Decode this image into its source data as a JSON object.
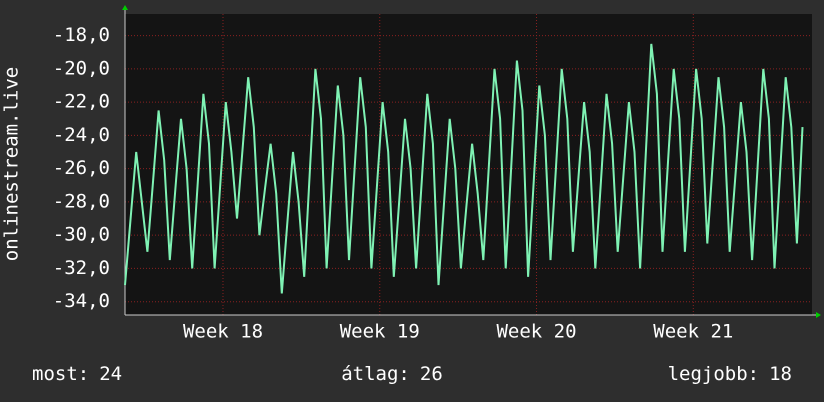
{
  "chart_data": {
    "type": "line",
    "ylabel": "onlinestream.live",
    "x": [
      0,
      1,
      2,
      3,
      4,
      5,
      6,
      7,
      8,
      9,
      10,
      11,
      12,
      13,
      14,
      15,
      16,
      17,
      18,
      19,
      20,
      21,
      22,
      23,
      24,
      25,
      26,
      27,
      28,
      29,
      30,
      31,
      32,
      33,
      34,
      35,
      36,
      37,
      38,
      39,
      40,
      41,
      42,
      43,
      44,
      45,
      46,
      47,
      48,
      49,
      50,
      51,
      52,
      53,
      54,
      55,
      56,
      57,
      58,
      59,
      60,
      61,
      62,
      63,
      64,
      65,
      66,
      67,
      68,
      69,
      70,
      71,
      72,
      73,
      74,
      75,
      76,
      77,
      78,
      79,
      80,
      81,
      82,
      83,
      84,
      85,
      86,
      87,
      88,
      89,
      90,
      91,
      92,
      93,
      94,
      95,
      96,
      97,
      98,
      99,
      100,
      101,
      102,
      103,
      104,
      105,
      106,
      107,
      108,
      109,
      110,
      111,
      112,
      113,
      114,
      115,
      116,
      117,
      118,
      119,
      120,
      121
    ],
    "series": [
      {
        "color": "#7ff2b4",
        "values": [
          -33,
          -29,
          -25,
          -28,
          -31,
          -26.8,
          -22.5,
          -25.5,
          -31.5,
          -27.2,
          -23,
          -26,
          -32,
          -26.8,
          -21.5,
          -24.5,
          -32,
          -27,
          -22,
          -25,
          -29,
          -24.8,
          -20.5,
          -23.5,
          -30,
          -27.2,
          -24.5,
          -27.5,
          -33.5,
          -29.2,
          -25,
          -28,
          -32.5,
          -26.2,
          -20,
          -23,
          -32,
          -26.5,
          -21,
          -24,
          -31.5,
          -26,
          -20.5,
          -23.5,
          -32,
          -27,
          -22,
          -25,
          -32.5,
          -27.8,
          -23,
          -26,
          -32,
          -26.8,
          -21.5,
          -24.5,
          -33,
          -28,
          -23,
          -26,
          -32,
          -28.2,
          -24.5,
          -27.5,
          -31.5,
          -25.8,
          -20,
          -23,
          -32,
          -25.8,
          -19.5,
          -22.5,
          -32.5,
          -26.8,
          -21,
          -24,
          -31.5,
          -25.8,
          -20,
          -23,
          -31,
          -26.5,
          -22,
          -25,
          -32,
          -26.8,
          -21.5,
          -24.5,
          -31,
          -26.5,
          -22,
          -25,
          -32,
          -25.2,
          -18.5,
          -21.5,
          -31,
          -25.5,
          -20,
          -23,
          -31,
          -25.5,
          -20,
          -23,
          -30.5,
          -25.5,
          -20.5,
          -23.5,
          -31,
          -26.5,
          -22,
          -25,
          -31.5,
          -25.8,
          -20,
          -23,
          -32,
          -26.2,
          -20.5,
          -23.5,
          -30.5,
          -23.5
        ]
      }
    ],
    "xlim": [
      0,
      122.7
    ],
    "xticks": [
      {
        "value": 17.5,
        "label": "Week 18"
      },
      {
        "value": 45.5,
        "label": "Week 19"
      },
      {
        "value": 73.5,
        "label": "Week 20"
      },
      {
        "value": 101.5,
        "label": "Week 21"
      }
    ],
    "ylim": [
      -34.8,
      -16.7
    ],
    "yticks": [
      {
        "value": -34,
        "label": "-34,0"
      },
      {
        "value": -32,
        "label": "-32,0"
      },
      {
        "value": -30,
        "label": "-30,0"
      },
      {
        "value": -28,
        "label": "-28,0"
      },
      {
        "value": -26,
        "label": "-26,0"
      },
      {
        "value": -24,
        "label": "-24,0"
      },
      {
        "value": -22,
        "label": "-22,0"
      },
      {
        "value": -20,
        "label": "-20,0"
      },
      {
        "value": -18,
        "label": "-18,0"
      }
    ],
    "grid": true,
    "summary": [
      {
        "label": "most:",
        "value": 24
      },
      {
        "label": "átlag:",
        "value": 26
      },
      {
        "label": "legjobb:",
        "value": 18
      }
    ]
  }
}
